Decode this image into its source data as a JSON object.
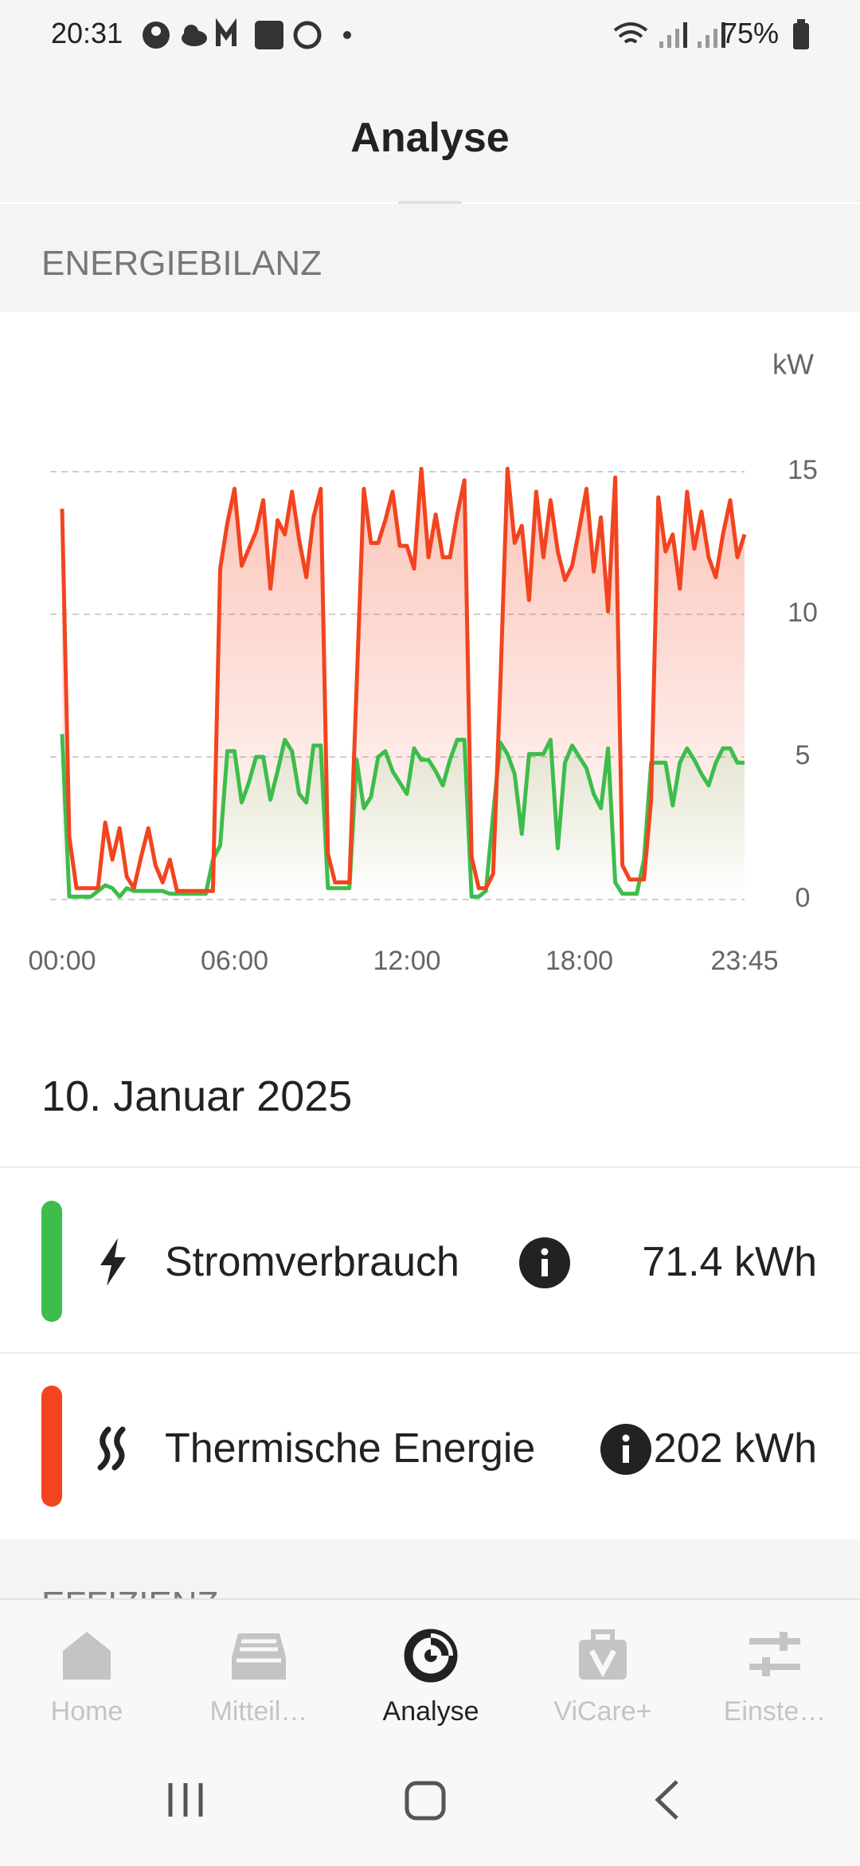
{
  "status_bar": {
    "time": "20:31",
    "battery": "75%"
  },
  "header": {
    "title": "Analyse"
  },
  "section": {
    "title": "ENERGIEBILANZ"
  },
  "chart_data": {
    "type": "line",
    "y_unit": "kW",
    "x": [
      0,
      0.25,
      0.5,
      0.75,
      1,
      1.25,
      1.5,
      1.75,
      2,
      2.25,
      2.5,
      2.75,
      3,
      3.25,
      3.5,
      3.75,
      4,
      4.25,
      4.5,
      4.75,
      5,
      5.25,
      5.5,
      5.75,
      6,
      6.25,
      6.5,
      6.75,
      7,
      7.25,
      7.5,
      7.75,
      8,
      8.25,
      8.5,
      8.75,
      9,
      9.25,
      9.5,
      9.75,
      10,
      10.25,
      10.5,
      10.75,
      11,
      11.25,
      11.5,
      11.75,
      12,
      12.25,
      12.5,
      12.75,
      13,
      13.25,
      13.5,
      13.75,
      14,
      14.25,
      14.5,
      14.75,
      15,
      15.25,
      15.5,
      15.75,
      16,
      16.25,
      16.5,
      16.75,
      17,
      17.25,
      17.5,
      17.75,
      18,
      18.25,
      18.5,
      18.75,
      19,
      19.25,
      19.5,
      19.75,
      20,
      20.25,
      20.5,
      20.75,
      21,
      21.25,
      21.5,
      21.75,
      22,
      22.25,
      22.5,
      22.75,
      23,
      23.25,
      23.5,
      23.75
    ],
    "xlim": [
      0,
      23.75
    ],
    "xticks": [
      {
        "value": 0,
        "label": "00:00"
      },
      {
        "value": 6,
        "label": "06:00"
      },
      {
        "value": 12,
        "label": "12:00"
      },
      {
        "value": 18,
        "label": "18:00"
      },
      {
        "value": 23.75,
        "label": "23:45"
      }
    ],
    "ylim": [
      0,
      15
    ],
    "yticks": [
      0,
      5,
      10,
      15
    ],
    "grid": true,
    "series": [
      {
        "name": "Stromverbrauch",
        "color": "#3dbd4b",
        "values": [
          5.8,
          0.1,
          0.1,
          0.1,
          0.1,
          0.3,
          0.5,
          0.4,
          0.1,
          0.4,
          0.3,
          0.3,
          0.3,
          0.3,
          0.3,
          0.2,
          0.2,
          0.2,
          0.2,
          0.2,
          0.2,
          1.4,
          1.9,
          5.2,
          5.2,
          3.4,
          4.1,
          5.0,
          5.0,
          3.5,
          4.5,
          5.6,
          5.2,
          3.7,
          3.4,
          5.4,
          5.4,
          0.4,
          0.4,
          0.4,
          0.4,
          4.9,
          3.2,
          3.6,
          5.0,
          5.2,
          4.5,
          4.1,
          3.7,
          5.3,
          4.9,
          4.9,
          4.5,
          4.0,
          4.9,
          5.6,
          5.6,
          0.1,
          0.1,
          0.3,
          3.0,
          5.5,
          5.1,
          4.4,
          2.3,
          5.1,
          5.1,
          5.1,
          5.6,
          1.8,
          4.8,
          5.4,
          5.0,
          4.6,
          3.7,
          3.2,
          5.3,
          0.6,
          0.2,
          0.2,
          0.2,
          1.4,
          4.8,
          4.8,
          4.8,
          3.3,
          4.8,
          5.3,
          4.9,
          4.4,
          4.0,
          4.8,
          5.3,
          5.3,
          4.8,
          4.8
        ]
      },
      {
        "name": "Thermische Energie",
        "color": "#f2441f",
        "values": [
          13.7,
          2.2,
          0.4,
          0.4,
          0.4,
          0.4,
          2.7,
          1.4,
          2.5,
          0.8,
          0.4,
          1.5,
          2.5,
          1.2,
          0.6,
          1.4,
          0.3,
          0.3,
          0.3,
          0.3,
          0.3,
          0.3,
          11.6,
          13.2,
          14.4,
          11.7,
          12.3,
          12.9,
          14.0,
          10.9,
          13.3,
          12.8,
          14.3,
          12.6,
          11.3,
          13.4,
          14.4,
          1.6,
          0.6,
          0.6,
          0.6,
          7.5,
          14.4,
          12.5,
          12.5,
          13.3,
          14.3,
          12.4,
          12.4,
          11.6,
          15.1,
          12.0,
          13.5,
          12.0,
          12.0,
          13.5,
          14.7,
          1.5,
          0.4,
          0.4,
          0.9,
          7.5,
          15.1,
          12.5,
          13.1,
          10.5,
          14.3,
          12.0,
          14.0,
          12.2,
          11.2,
          11.7,
          13.0,
          14.4,
          11.5,
          13.4,
          10.1,
          14.8,
          1.2,
          0.7,
          0.7,
          0.7,
          3.5,
          14.1,
          12.2,
          12.8,
          10.9,
          14.3,
          12.3,
          13.6,
          12.0,
          11.3,
          12.8,
          14.0,
          12.0,
          12.8
        ]
      }
    ]
  },
  "date": "10. Januar 2025",
  "summary": {
    "rows": [
      {
        "total": "71.4 kWh"
      },
      {
        "total": "202 kWh"
      }
    ]
  },
  "next_section": {
    "title": "EFFIZIENZ"
  },
  "nav": {
    "items": [
      "Home",
      "Mitteil…",
      "Analyse",
      "ViCare+",
      "Einste…"
    ],
    "active": 2
  }
}
